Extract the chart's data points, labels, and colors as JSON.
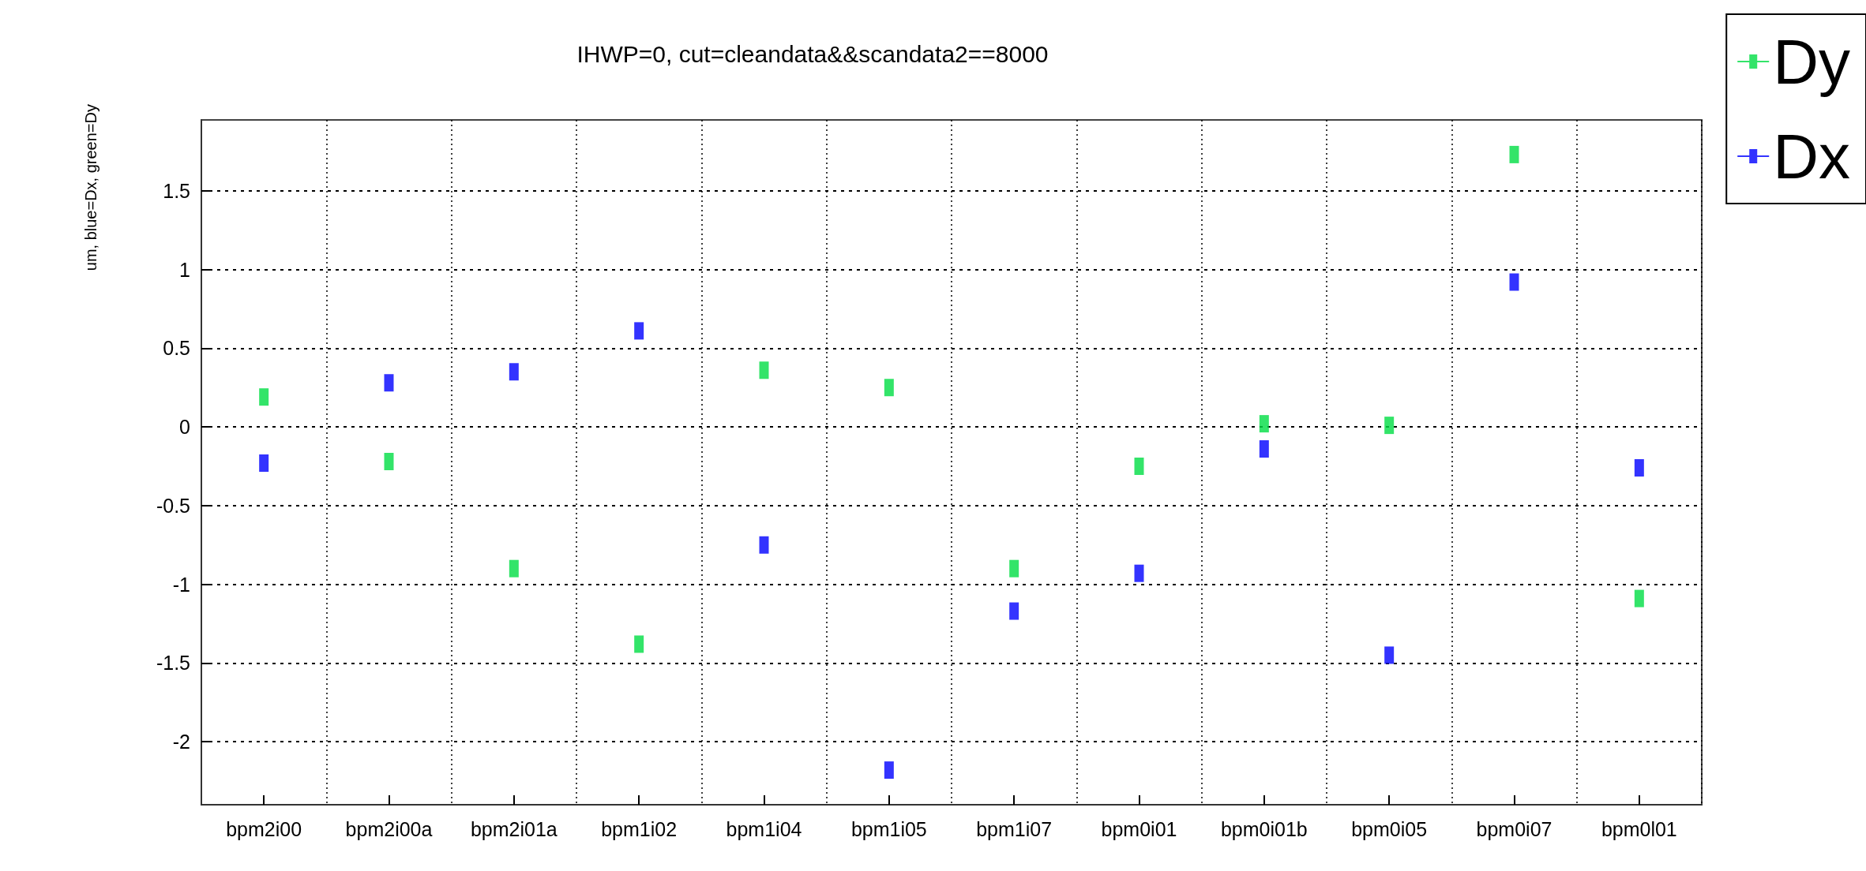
{
  "chart_data": {
    "type": "scatter",
    "title": "IHWP=0, cut=cleandata&&scandata2==8000",
    "ylabel": "um, blue=Dx, green=Dy",
    "categories": [
      "bpm2i00",
      "bpm2i00a",
      "bpm2i01a",
      "bpm1i02",
      "bpm1i04",
      "bpm1i05",
      "bpm1i07",
      "bpm0i01",
      "bpm0i01b",
      "bpm0i05",
      "bpm0i07",
      "bpm0l01"
    ],
    "series": [
      {
        "name": "Dy",
        "color": "#00dd44",
        "values": [
          0.19,
          -0.22,
          -0.9,
          -1.38,
          0.36,
          0.25,
          -0.9,
          -0.25,
          0.02,
          0.01,
          1.73,
          -1.09
        ]
      },
      {
        "name": "Dx",
        "color": "#0000ff",
        "values": [
          -0.23,
          0.28,
          0.35,
          0.61,
          -0.75,
          -2.18,
          -1.17,
          -0.93,
          -0.14,
          -1.45,
          0.92,
          -0.26
        ]
      }
    ],
    "ylim": [
      -2.4,
      1.95
    ],
    "yticks": [
      -2,
      -1.5,
      -1,
      -0.5,
      0,
      0.5,
      1,
      1.5
    ],
    "grid": true,
    "legend": "top right",
    "marker": "square"
  }
}
